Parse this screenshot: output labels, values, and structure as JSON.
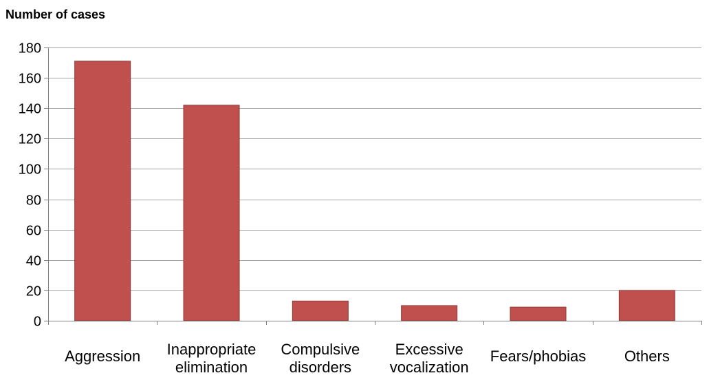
{
  "chart_data": {
    "type": "bar",
    "title": "Number of cases",
    "categories": [
      [
        "Aggression"
      ],
      [
        "Inappropriate",
        "elimination"
      ],
      [
        "Compulsive",
        "disorders"
      ],
      [
        "Excessive",
        "vocalization"
      ],
      [
        "Fears/phobias"
      ],
      [
        "Others"
      ]
    ],
    "values": [
      171,
      142,
      13,
      10,
      9,
      20
    ],
    "ylim": [
      0,
      180
    ],
    "yticks": [
      0,
      20,
      40,
      60,
      80,
      100,
      120,
      140,
      160,
      180
    ],
    "xlabel": "",
    "ylabel": "",
    "grid": true,
    "legend": "none",
    "colors": {
      "bar_fill": "#C0504D",
      "bar_stroke": "#8C3836",
      "gridline": "#A6A6A6",
      "axis": "#808080",
      "text": "#000000"
    }
  }
}
